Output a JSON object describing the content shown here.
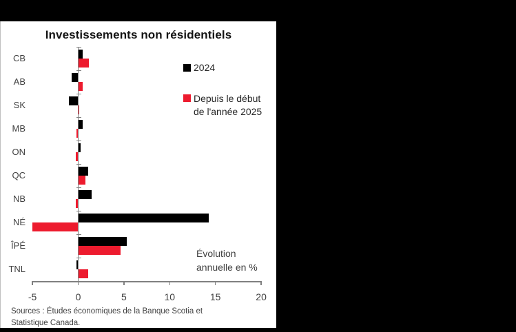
{
  "window": {
    "background": "#000000",
    "panel_background": "#ffffff"
  },
  "chart": {
    "title": "Investissements non résidentiels",
    "legend": {
      "items": [
        {
          "label": "2024",
          "color": "#000000"
        },
        {
          "label_line1": "Depuis le début",
          "label_line2": "de l'année 2025",
          "color": "#ED1B2E"
        }
      ]
    },
    "annotation": {
      "line1": "Évolution",
      "line2": "annuelle en %"
    },
    "source_line1": "Sources : Études économiques de la Banque Scotia et",
    "source_line2": "Statistique Canada."
  },
  "chart_data": {
    "type": "bar",
    "orientation": "horizontal",
    "title": "Investissements non résidentiels",
    "unit_note": "Évolution annuelle en %",
    "categories": [
      "CB",
      "AB",
      "SK",
      "MB",
      "ON",
      "QC",
      "NB",
      "NÉ",
      "ÎPÉ",
      "TNL"
    ],
    "series": [
      {
        "name": "2024",
        "color": "#000000",
        "values": [
          0.5,
          -0.7,
          -1.0,
          0.5,
          0.3,
          1.1,
          1.5,
          14.3,
          5.3,
          -0.2
        ]
      },
      {
        "name": "Depuis le début de l'année 2025",
        "color": "#ED1B2E",
        "values": [
          1.2,
          0.5,
          0.1,
          -0.2,
          -0.3,
          0.8,
          -0.3,
          -5.0,
          4.6,
          1.1
        ]
      }
    ],
    "xlim": [
      -5,
      20
    ],
    "xticks": [
      -5,
      0,
      5,
      10,
      15,
      20
    ],
    "axis_color": "#808080",
    "grid": false,
    "legend_position": "upper right"
  }
}
